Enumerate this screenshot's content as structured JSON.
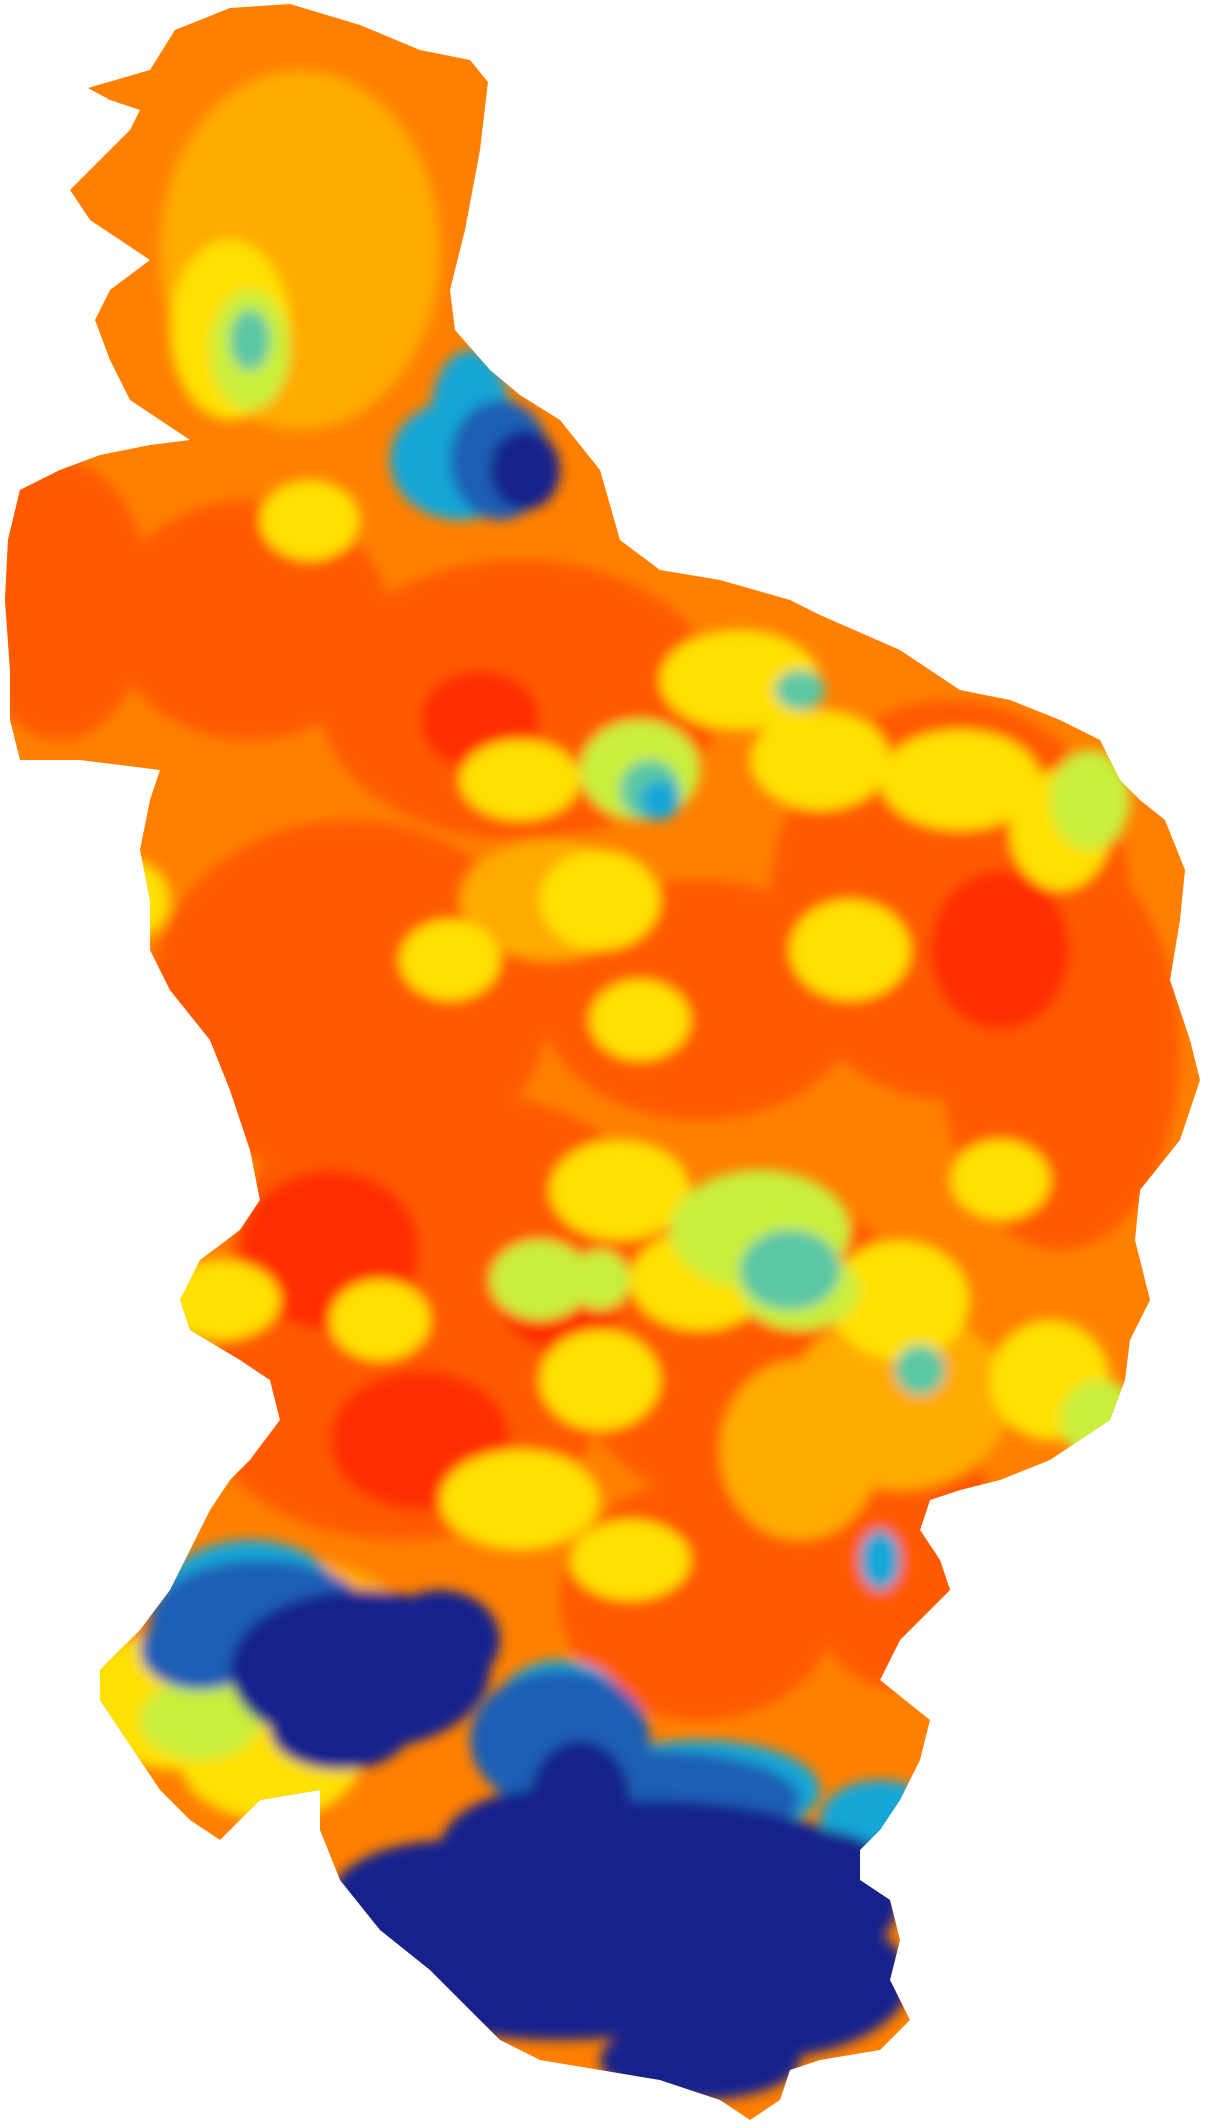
{
  "map": {
    "type": "choropleth-raster",
    "legend": null,
    "labels": [],
    "color_scale": [
      "#13208c",
      "#1d5fb5",
      "#16a6d6",
      "#5cc8a4",
      "#c9ee3a",
      "#ffe000",
      "#ffab00",
      "#ff8000",
      "#ff5a00",
      "#ff2d00"
    ],
    "background": "#ffffff"
  }
}
